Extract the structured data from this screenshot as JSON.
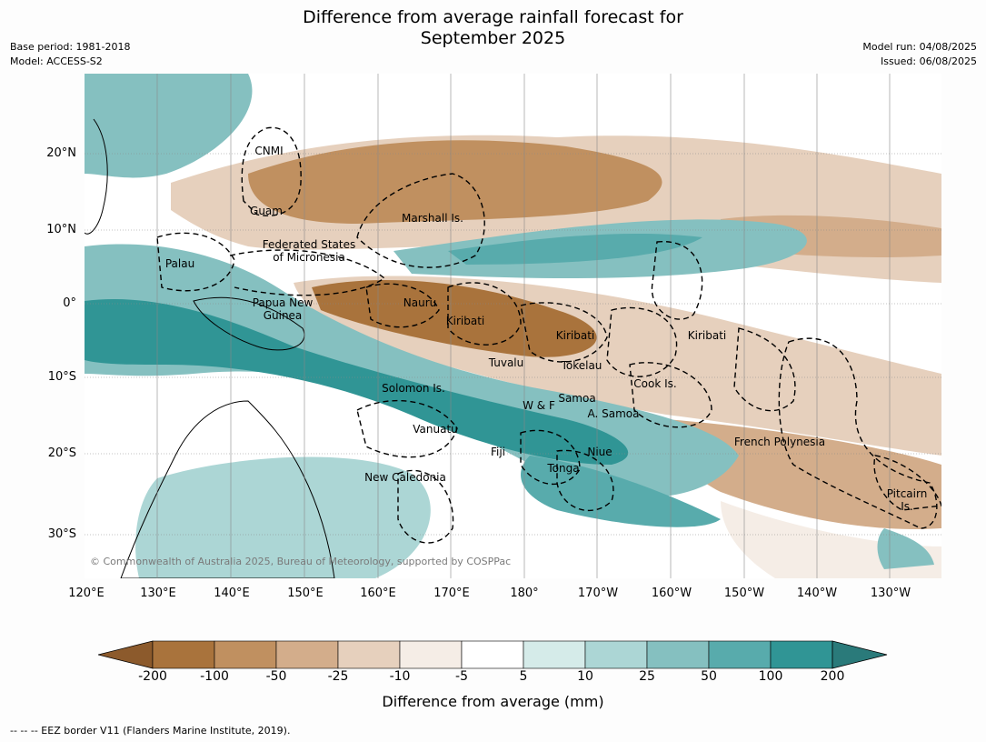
{
  "title_line1": "Difference from average rainfall forecast for",
  "title_line2": "September 2025",
  "base_period": "Base period: 1981-2018",
  "model": "Model: ACCESS-S2",
  "model_run": "Model run: 04/08/2025",
  "issued": "Issued: 06/08/2025",
  "copyright": "© Commonwealth of Australia 2025, Bureau of Meteorology, supported by COSPPac",
  "lat_labels": [
    "20°N",
    "10°N",
    "0°",
    "10°S",
    "20°S",
    "30°S"
  ],
  "lon_labels": [
    "120°E",
    "130°E",
    "140°E",
    "150°E",
    "160°E",
    "170°E",
    "180°",
    "170°W",
    "160°W",
    "150°W",
    "140°W",
    "130°W"
  ],
  "places": {
    "cnmi": "CNMI",
    "guam": "Guam",
    "marshall": "Marshall Is.",
    "fsm1": "Federated States",
    "fsm2": "of Micronesia",
    "palau": "Palau",
    "nauru": "Nauru",
    "png1": "Papua New",
    "png2": "Guinea",
    "kiribati_w": "Kiribati",
    "kiribati_c": "Kiribati",
    "kiribati_e": "Kiribati",
    "tuvalu": "Tuvalu",
    "tokelau": "Tokelau",
    "cook": "Cook Is.",
    "solomon": "Solomon Is.",
    "wf": "W & F",
    "samoa": "Samoa",
    "asamoa": "A. Samoa",
    "vanuatu": "Vanuatu",
    "fiji": "Fiji",
    "niue": "Niue",
    "tonga": "Tonga",
    "frpoly": "French Polynesia",
    "newcal": "New Caledonia",
    "pitcairn1": "Pitcairn",
    "pitcairn2": "Is."
  },
  "colorbar": {
    "labels": [
      "-200",
      "-100",
      "-50",
      "-25",
      "-10",
      "-5",
      "5",
      "10",
      "25",
      "50",
      "100",
      "200"
    ],
    "colors": [
      "#8c5a2c",
      "#a9733c",
      "#c09060",
      "#d3ad8b",
      "#e6d0bd",
      "#f5ede6",
      "#ffffff",
      "#d5ebe9",
      "#acd6d5",
      "#85c0c0",
      "#58abac",
      "#309595",
      "#2a7a7a"
    ],
    "title": "Difference from average (mm)"
  },
  "footer": "--  --  -- EEZ border V11 (Flanders Marine Institute, 2019)."
}
